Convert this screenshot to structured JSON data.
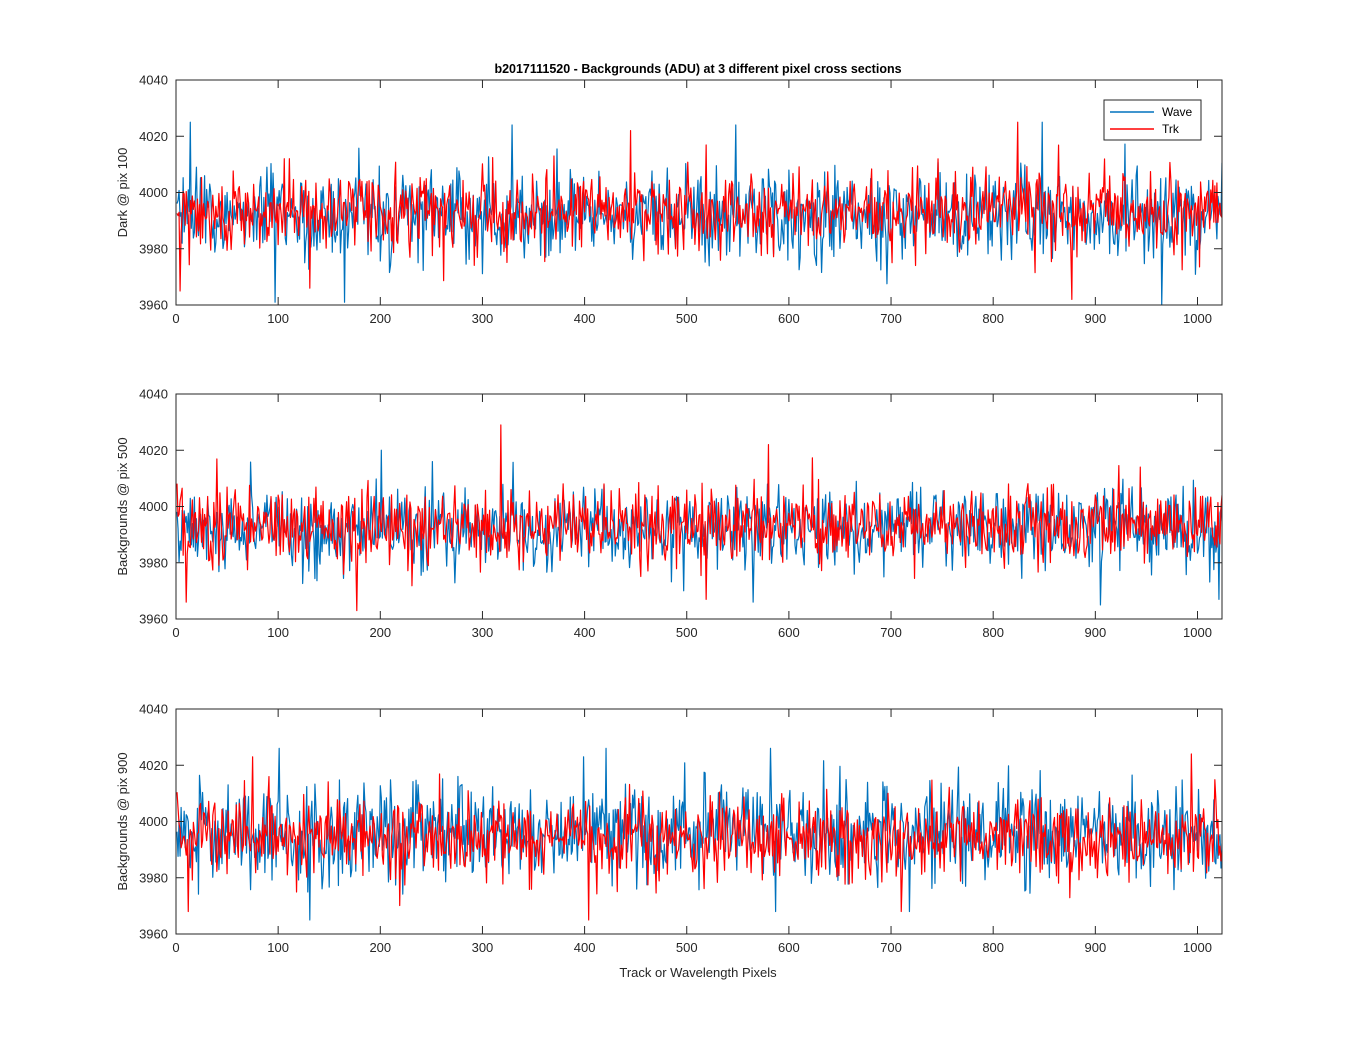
{
  "title": "b2017111520 - Backgrounds (ADU) at 3 different pixel cross sections",
  "xlabel": "Track or Wavelength Pixels",
  "colors": {
    "Wave": "#0072BD",
    "Trk": "#FF0000",
    "axes": "#262626"
  },
  "legend": [
    "Wave",
    "Trk"
  ],
  "chart_data": [
    {
      "type": "line",
      "title": "b2017111520 - Backgrounds (ADU) at 3 different pixel cross sections",
      "xlabel": "",
      "ylabel": "Dark @ pix 100",
      "xlim": [
        0,
        1024
      ],
      "ylim": [
        3960,
        4040
      ],
      "xticks": [
        0,
        100,
        200,
        300,
        400,
        500,
        600,
        700,
        800,
        900,
        1000
      ],
      "yticks": [
        3960,
        3980,
        4000,
        4020,
        4040
      ],
      "legend": "top-right",
      "grid": false,
      "x_range": [
        1,
        1024
      ],
      "series": [
        {
          "name": "Wave",
          "mean": 3992,
          "std": 8,
          "min": 3960,
          "max": 4025,
          "peaks": [
            [
              14,
              4025
            ],
            [
              97,
              3961
            ],
            [
              165,
              3961
            ],
            [
              329,
              4024
            ],
            [
              548,
              4024
            ],
            [
              848,
              4025
            ],
            [
              965,
              3960
            ]
          ]
        },
        {
          "name": "Trk",
          "mean": 3993,
          "std": 7,
          "min": 3962,
          "max": 4025,
          "peaks": [
            [
              4,
              3965
            ],
            [
              131,
              3966
            ],
            [
              445,
              4022
            ],
            [
              824,
              4025
            ],
            [
              877,
              3962
            ]
          ]
        }
      ]
    },
    {
      "type": "line",
      "title": "",
      "xlabel": "",
      "ylabel": "Backgrounds @ pix 500",
      "xlim": [
        0,
        1024
      ],
      "ylim": [
        3960,
        4040
      ],
      "xticks": [
        0,
        100,
        200,
        300,
        400,
        500,
        600,
        700,
        800,
        900,
        1000
      ],
      "yticks": [
        3960,
        3980,
        4000,
        4020,
        4040
      ],
      "grid": false,
      "x_range": [
        1,
        1024
      ],
      "series": [
        {
          "name": "Wave",
          "mean": 3992,
          "std": 7,
          "min": 3965,
          "max": 4020,
          "peaks": [
            [
              201,
              4020
            ],
            [
              565,
              3966
            ],
            [
              905,
              3965
            ],
            [
              1021,
              3967
            ]
          ]
        },
        {
          "name": "Trk",
          "mean": 3993,
          "std": 7,
          "min": 3963,
          "max": 4029,
          "peaks": [
            [
              10,
              3966
            ],
            [
              177,
              3963
            ],
            [
              318,
              4029
            ],
            [
              519,
              3967
            ],
            [
              580,
              4022
            ]
          ]
        }
      ]
    },
    {
      "type": "line",
      "title": "",
      "xlabel": "Track or Wavelength Pixels",
      "ylabel": "Backgrounds @ pix 900",
      "xlim": [
        0,
        1024
      ],
      "ylim": [
        3960,
        4040
      ],
      "xticks": [
        0,
        100,
        200,
        300,
        400,
        500,
        600,
        700,
        800,
        900,
        1000
      ],
      "yticks": [
        3960,
        3980,
        4000,
        4020,
        4040
      ],
      "grid": false,
      "x_range": [
        1,
        1024
      ],
      "series": [
        {
          "name": "Wave",
          "mean": 3996,
          "std": 9,
          "min": 3965,
          "max": 4026,
          "peaks": [
            [
              101,
              4026
            ],
            [
              131,
              3965
            ],
            [
              421,
              4026
            ],
            [
              582,
              4026
            ],
            [
              718,
              3968
            ]
          ]
        },
        {
          "name": "Trk",
          "mean": 3994,
          "std": 7,
          "min": 3965,
          "max": 4024,
          "peaks": [
            [
              12,
              3968
            ],
            [
              75,
              4023
            ],
            [
              404,
              3965
            ],
            [
              994,
              4024
            ]
          ]
        }
      ]
    }
  ]
}
